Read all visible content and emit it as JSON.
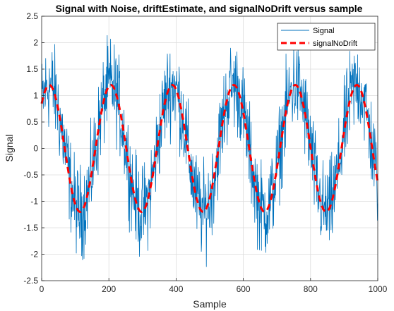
{
  "chart_data": {
    "type": "line",
    "title": "Signal with Noise, driftEstimate, and signalNoDrift versus sample",
    "xlabel": "Sample",
    "ylabel": "Signal",
    "xlim": [
      0,
      1000
    ],
    "ylim": [
      -2.5,
      2.5
    ],
    "xticks": [
      0,
      200,
      400,
      600,
      800,
      1000
    ],
    "yticks": [
      -2.5,
      -2,
      -1.5,
      -1,
      -0.5,
      0,
      0.5,
      1,
      1.5,
      2,
      2.5
    ],
    "grid": true,
    "legend": {
      "position": "top-right",
      "entries": [
        "Signal",
        "signalNoDrift"
      ]
    },
    "series": [
      {
        "name": "Signal",
        "color": "#0072BD",
        "style": "solid",
        "description_of_values": "noisy samples, 1001 points",
        "x_start": 0,
        "x_step": 1,
        "sine_period": 183,
        "sine_amplitude": 1.2,
        "sine_phase_deg": 45,
        "noise_amplitude": 0.85
      },
      {
        "name": "signalNoDrift",
        "color": "#FF0000",
        "style": "dashed",
        "x_start": 0,
        "x_step": 1,
        "sine_period": 183,
        "sine_amplitude": 1.2,
        "sine_phase_deg": 45
      }
    ]
  }
}
